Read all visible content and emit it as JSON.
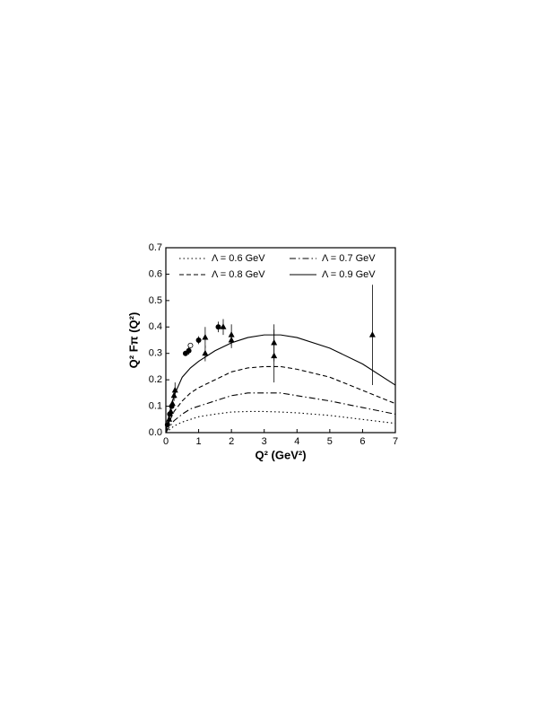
{
  "chart_data": {
    "type": "line",
    "xlabel": "Q² (GeV²)",
    "ylabel": "Q² Fπ (Q²)",
    "x": [
      0,
      0.1,
      0.25,
      0.5,
      0.75,
      1,
      1.5,
      2,
      2.5,
      3,
      3.5,
      4,
      5,
      6,
      7
    ],
    "series": [
      {
        "name": "Λ = 0.6 GeV",
        "color": "#000000",
        "dash": "1.5,3",
        "values": [
          0,
          0.01,
          0.025,
          0.04,
          0.05,
          0.06,
          0.07,
          0.078,
          0.08,
          0.08,
          0.078,
          0.075,
          0.065,
          0.05,
          0.035
        ]
      },
      {
        "name": "Λ = 0.7 GeV",
        "color": "#000000",
        "dash": "7,3,1.5,3",
        "values": [
          0,
          0.02,
          0.045,
          0.07,
          0.09,
          0.1,
          0.12,
          0.14,
          0.15,
          0.15,
          0.15,
          0.14,
          0.12,
          0.095,
          0.07
        ]
      },
      {
        "name": "Λ = 0.8 GeV",
        "color": "#000000",
        "dash": "5,3",
        "values": [
          0,
          0.04,
          0.08,
          0.12,
          0.15,
          0.17,
          0.2,
          0.23,
          0.245,
          0.25,
          0.25,
          0.24,
          0.21,
          0.16,
          0.11
        ]
      },
      {
        "name": "Λ = 0.9 GeV",
        "color": "#000000",
        "dash": "none",
        "values": [
          0,
          0.07,
          0.14,
          0.21,
          0.245,
          0.27,
          0.31,
          0.34,
          0.36,
          0.37,
          0.37,
          0.36,
          0.32,
          0.26,
          0.18
        ]
      }
    ],
    "data_points": [
      {
        "marker": "triangle",
        "x": [
          0.1,
          0.15,
          0.2,
          0.25,
          0.28,
          1.2,
          1.2,
          1.75,
          2.0,
          2.0,
          3.3,
          3.3,
          6.3
        ],
        "y": [
          0.05,
          0.08,
          0.11,
          0.14,
          0.16,
          0.36,
          0.3,
          0.4,
          0.37,
          0.35,
          0.34,
          0.29,
          0.37
        ],
        "err": [
          0.01,
          0.01,
          0.015,
          0.02,
          0.03,
          0.04,
          0.03,
          0.03,
          0.04,
          0.03,
          0.07,
          0.1,
          0.19
        ]
      },
      {
        "marker": "circle",
        "x": [
          0.05,
          0.12,
          0.18,
          0.6,
          0.7,
          1.0,
          1.6
        ],
        "y": [
          0.03,
          0.07,
          0.1,
          0.3,
          0.31,
          0.35,
          0.4
        ],
        "err": [
          0.005,
          0.01,
          0.01,
          0.01,
          0.015,
          0.015,
          0.02
        ]
      },
      {
        "marker": "open-circle",
        "x": [
          0.75
        ],
        "y": [
          0.33
        ],
        "err": [
          0.01
        ]
      }
    ],
    "xlim": [
      0,
      7
    ],
    "ylim": [
      0,
      0.7
    ],
    "xticks": [
      0,
      1,
      2,
      3,
      4,
      5,
      6,
      7
    ],
    "yticks": [
      {
        "value": 0,
        "label": "0.0"
      },
      0.1,
      0.2,
      0.3,
      0.4,
      0.5,
      0.6,
      0.7
    ],
    "legend": "top"
  }
}
